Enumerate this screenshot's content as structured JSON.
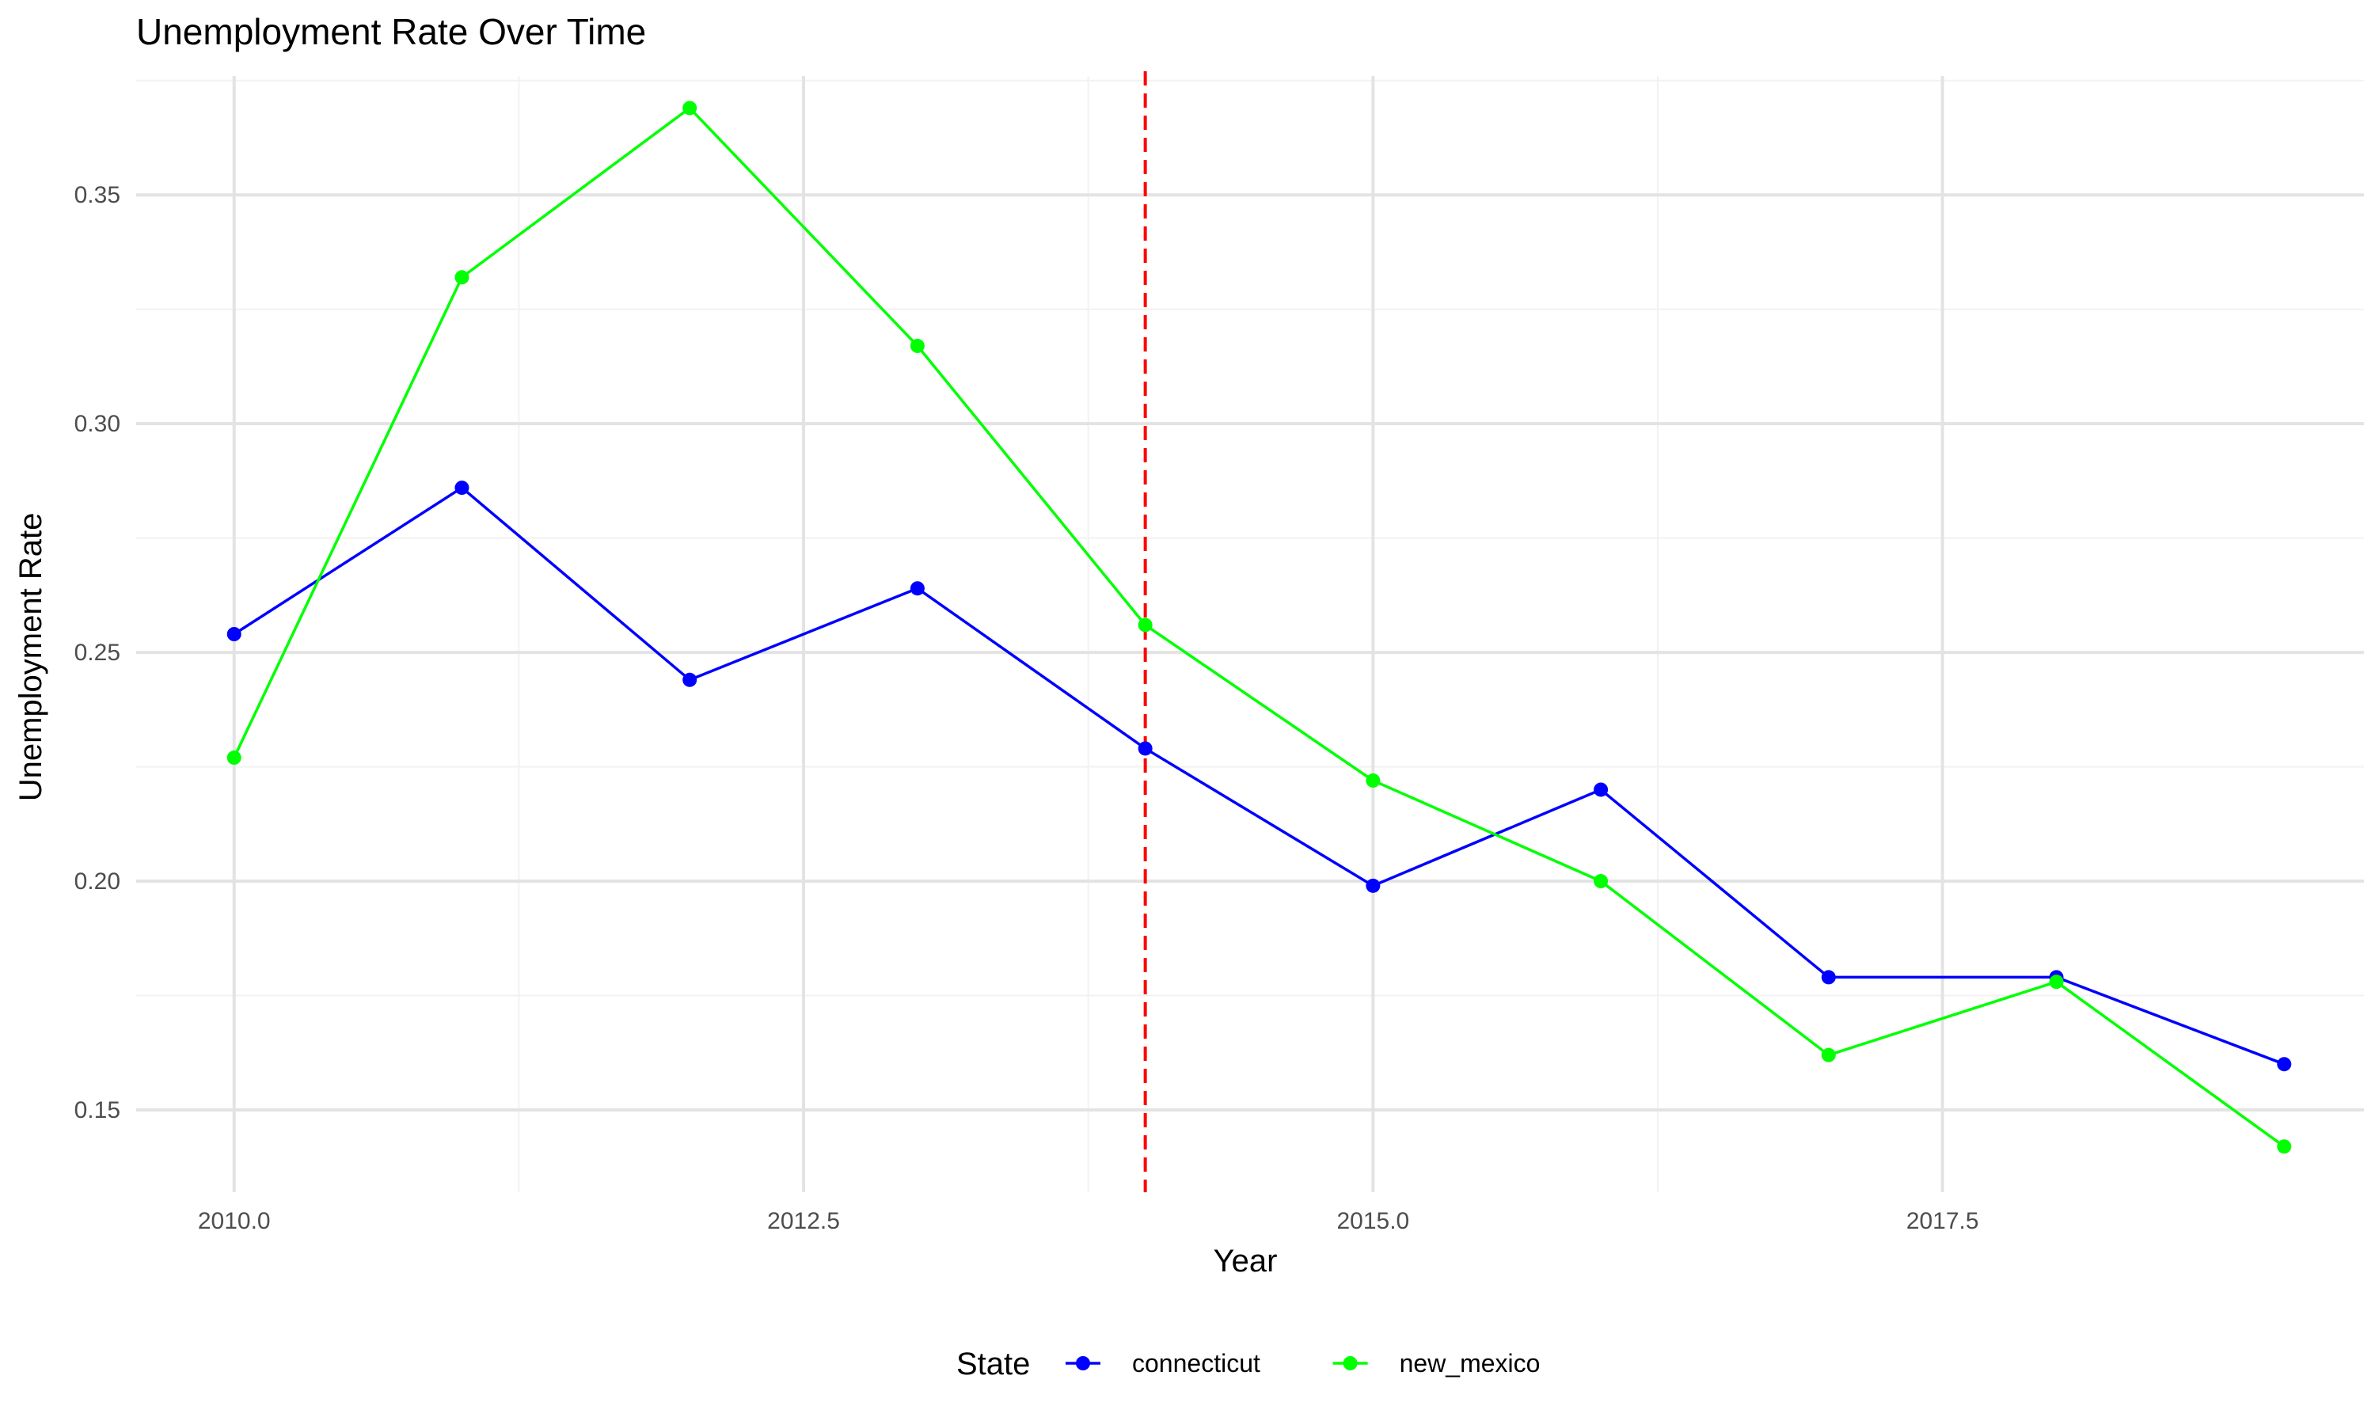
{
  "chart_data": {
    "type": "line",
    "title": "Unemployment Rate Over Time",
    "xlabel": "Year",
    "ylabel": "Unemployment Rate",
    "x": [
      2010,
      2011,
      2012,
      2013,
      2014,
      2015,
      2016,
      2017,
      2018,
      2019
    ],
    "xlim": [
      2009.57,
      2019.35
    ],
    "ylim": [
      0.132,
      0.376
    ],
    "x_ticks": [
      2010.0,
      2012.5,
      2015.0,
      2017.5
    ],
    "x_tick_labels": [
      "2010.0",
      "2012.5",
      "2015.0",
      "2017.5"
    ],
    "y_ticks": [
      0.15,
      0.2,
      0.25,
      0.3,
      0.35
    ],
    "y_tick_labels": [
      "0.15",
      "0.20",
      "0.25",
      "0.30",
      "0.35"
    ],
    "grid": true,
    "legend": {
      "title": "State",
      "placement": "bottom"
    },
    "series": [
      {
        "name": "connecticut",
        "color": "#0000ff",
        "values": [
          0.254,
          0.286,
          0.244,
          0.264,
          0.229,
          0.199,
          0.22,
          0.179,
          0.179,
          0.16
        ]
      },
      {
        "name": "new_mexico",
        "color": "#00ff00",
        "values": [
          0.227,
          0.332,
          0.369,
          0.317,
          0.256,
          0.222,
          0.2,
          0.162,
          0.178,
          0.142
        ]
      }
    ],
    "annotations": [
      {
        "type": "vline",
        "x": 2014,
        "color": "#ff0000",
        "style": "dashed"
      }
    ]
  }
}
